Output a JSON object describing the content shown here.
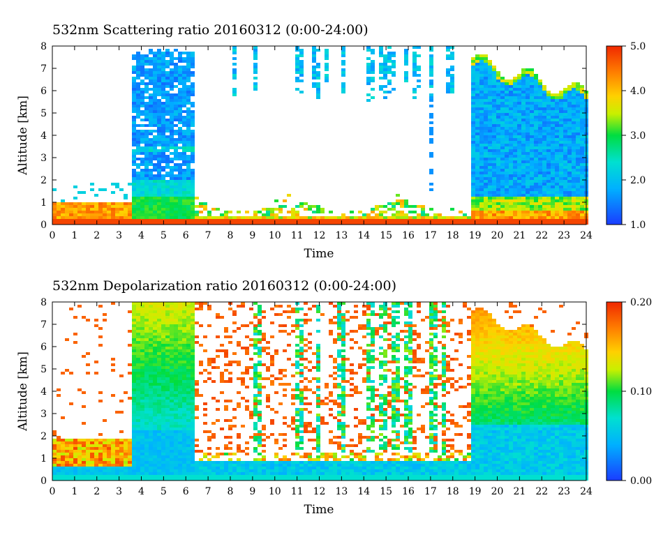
{
  "chart_data": [
    {
      "type": "heatmap",
      "title": "532nm Scattering ratio  20160312 (0:00-24:00)",
      "xlabel": "Time",
      "ylabel": "Altitude [km]",
      "xlim": [
        0,
        24
      ],
      "ylim": [
        0,
        8
      ],
      "x_ticks": [
        "0",
        "1",
        "2",
        "3",
        "4",
        "5",
        "6",
        "7",
        "8",
        "9",
        "10",
        "11",
        "12",
        "13",
        "14",
        "15",
        "16",
        "17",
        "18",
        "19",
        "20",
        "21",
        "22",
        "23",
        "24"
      ],
      "y_ticks": [
        "0",
        "1",
        "2",
        "3",
        "4",
        "5",
        "6",
        "7",
        "8"
      ],
      "colorbar": {
        "range": [
          1.0,
          5.0
        ],
        "ticks": [
          "5.0",
          "4.0",
          "3.0",
          "2.0",
          "1.0"
        ],
        "colors": [
          "#1a3cff",
          "#00c8ff",
          "#00dd40",
          "#f0f000",
          "#ff9000",
          "#f02800"
        ]
      },
      "features": [
        {
          "time": [
            0.0,
            3.5
          ],
          "alt_range": [
            0.2,
            2.0
          ],
          "value": 3.8
        },
        {
          "time": [
            3.5,
            6.4
          ],
          "alt_range": [
            0.2,
            8.0
          ],
          "value": 1.8
        },
        {
          "time": [
            6.4,
            18.8
          ],
          "alt_range": [
            0.2,
            1.8
          ],
          "value": 2.5
        },
        {
          "time": [
            18.8,
            24.0
          ],
          "alt_range": [
            0.2,
            7.5
          ],
          "value": 1.7
        }
      ]
    },
    {
      "type": "heatmap",
      "title": "532nm Depolarization ratio  20160312 (0:00-24:00)",
      "xlabel": "Time",
      "ylabel": "Altitude [km]",
      "xlim": [
        0,
        24
      ],
      "ylim": [
        0,
        8
      ],
      "x_ticks": [
        "0",
        "1",
        "2",
        "3",
        "4",
        "5",
        "6",
        "7",
        "8",
        "9",
        "10",
        "11",
        "12",
        "13",
        "14",
        "15",
        "16",
        "17",
        "18",
        "19",
        "20",
        "21",
        "22",
        "23",
        "24"
      ],
      "y_ticks": [
        "0",
        "1",
        "2",
        "3",
        "4",
        "5",
        "6",
        "7",
        "8"
      ],
      "colorbar": {
        "range": [
          0.0,
          0.2
        ],
        "ticks": [
          "0.20",
          "0.10",
          "0.00"
        ],
        "colors": [
          "#1a3cff",
          "#00c8ff",
          "#00dd40",
          "#f0f000",
          "#ff9000",
          "#f02800"
        ]
      },
      "features": [
        {
          "time": [
            0.0,
            3.5
          ],
          "alt_range": [
            0.2,
            2.0
          ],
          "value": 0.15
        },
        {
          "time": [
            3.5,
            6.4
          ],
          "alt_range": [
            0.2,
            8.0
          ],
          "value": 0.07
        },
        {
          "time": [
            6.4,
            18.8
          ],
          "alt_range": [
            0.2,
            8.0
          ],
          "value": 0.17
        },
        {
          "time": [
            18.8,
            24.0
          ],
          "alt_range": [
            0.2,
            7.0
          ],
          "value": 0.09
        }
      ]
    }
  ]
}
